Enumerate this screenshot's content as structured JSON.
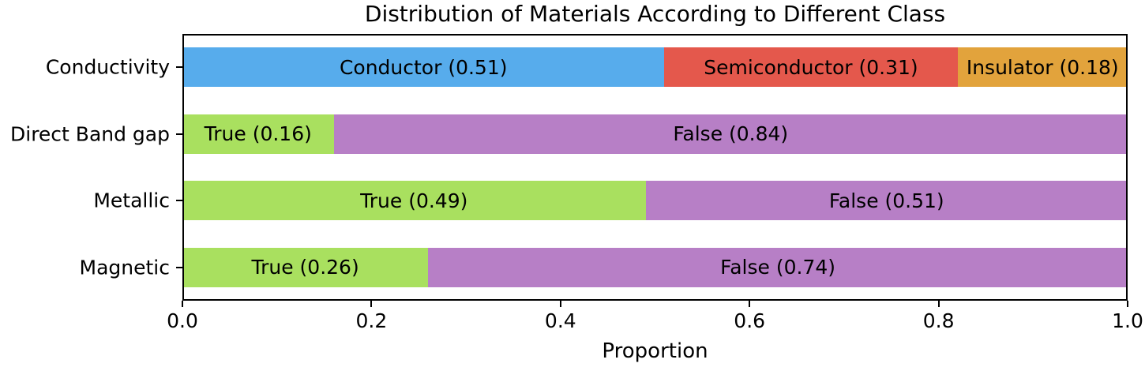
{
  "chart_data": {
    "type": "bar",
    "variant": "horizontal_stacked",
    "title": "Distribution of Materials According to Different Class",
    "xlabel": "Proportion",
    "xlim": [
      0.0,
      1.0
    ],
    "grid": false,
    "legend_position": "none",
    "x_ticks": [
      "0.0",
      "0.2",
      "0.4",
      "0.6",
      "0.8",
      "1.0"
    ],
    "x_tick_values": [
      0.0,
      0.2,
      0.4,
      0.6,
      0.8,
      1.0
    ],
    "categories": [
      "Conductivity",
      "Direct Band gap",
      "Metallic",
      "Magnetic"
    ],
    "palette": {
      "conductor_blue": "#57ACEC",
      "semiconductor_red": "#E4584C",
      "insulator_orange": "#E2A33C",
      "true_green": "#A9E05F",
      "false_purple": "#B77FC6",
      "spine_black": "#000000"
    },
    "rows": [
      {
        "category": "Conductivity",
        "segments": [
          {
            "name": "Conductor",
            "value": 0.51,
            "label": "Conductor (0.51)",
            "color": "#57ACEC"
          },
          {
            "name": "Semiconductor",
            "value": 0.31,
            "label": "Semiconductor (0.31)",
            "color": "#E4584C"
          },
          {
            "name": "Insulator",
            "value": 0.18,
            "label": "Insulator (0.18)",
            "color": "#E2A33C"
          }
        ]
      },
      {
        "category": "Direct Band gap",
        "segments": [
          {
            "name": "True",
            "value": 0.16,
            "label": "True (0.16)",
            "color": "#A9E05F"
          },
          {
            "name": "False",
            "value": 0.84,
            "label": "False (0.84)",
            "color": "#B77FC6"
          }
        ]
      },
      {
        "category": "Metallic",
        "segments": [
          {
            "name": "True",
            "value": 0.49,
            "label": "True (0.49)",
            "color": "#A9E05F"
          },
          {
            "name": "False",
            "value": 0.51,
            "label": "False (0.51)",
            "color": "#B77FC6"
          }
        ]
      },
      {
        "category": "Magnetic",
        "segments": [
          {
            "name": "True",
            "value": 0.26,
            "label": "True (0.26)",
            "color": "#A9E05F"
          },
          {
            "name": "False",
            "value": 0.74,
            "label": "False (0.74)",
            "color": "#B77FC6"
          }
        ]
      }
    ]
  }
}
